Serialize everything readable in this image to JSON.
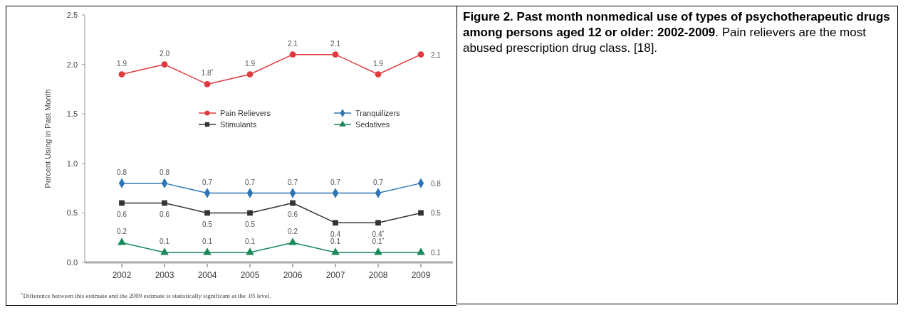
{
  "chart_data": {
    "type": "line",
    "title": "Figure 2. Past month nonmedical use of types of psychotherapeutic drugs among persons aged 12 or older: 2002-2009",
    "subtitle": ". Pain relievers are the most abused prescription drug class. [18].",
    "ylabel": "Percent Using in Past Month",
    "categories": [
      "2002",
      "2003",
      "2004",
      "2005",
      "2006",
      "2007",
      "2008",
      "2009"
    ],
    "ylim": [
      0,
      2.5
    ],
    "yticks": [
      {
        "value": 0,
        "label": "0.0"
      },
      {
        "value": 0.5,
        "label": "0.5"
      },
      {
        "value": 1,
        "label": "1.0"
      },
      {
        "value": 1.5,
        "label": "1.5"
      },
      {
        "value": 2,
        "label": "2.0"
      },
      {
        "value": 2.5,
        "label": "2.5"
      }
    ],
    "grid": false,
    "legend": "center",
    "line_style": "solid",
    "series": [
      {
        "name": "Pain Relievers",
        "color": "#e03a3e",
        "marker": "circle",
        "values": [
          1.9,
          2.0,
          1.8,
          1.9,
          2.1,
          2.1,
          1.9,
          2.1
        ],
        "value_labels": [
          "1.9",
          "2.0",
          "1.8$^{*}$",
          "1.9",
          "2.1",
          "2.1",
          "1.9",
          "2.1"
        ]
      },
      {
        "name": "Tranquilizers",
        "color": "#2e75b6",
        "marker": "diamond",
        "values": [
          0.8,
          0.8,
          0.7,
          0.7,
          0.7,
          0.7,
          0.7,
          0.8
        ],
        "value_labels": [
          "0.8",
          "0.8",
          "0.7",
          "0.7",
          "0.7",
          "0.7",
          "0.7",
          "0.8"
        ]
      },
      {
        "name": "Stimulants",
        "color": "#333333",
        "marker": "square",
        "values": [
          0.6,
          0.6,
          0.5,
          0.5,
          0.6,
          0.4,
          0.4,
          0.5
        ],
        "value_labels": [
          "0.6",
          "0.6",
          "0.5",
          "0.5",
          "0.6",
          "0.4",
          "0.4$^{*}$",
          "0.5"
        ]
      },
      {
        "name": "Sedatives",
        "color": "#1a8a5a",
        "marker": "triangle",
        "values": [
          0.2,
          0.1,
          0.1,
          0.1,
          0.2,
          0.1,
          0.1,
          0.1
        ],
        "value_labels": [
          "0.2",
          "0.1",
          "0.1",
          "0.1",
          "0.2",
          "0.1",
          "0.1$^{*}$",
          "0.1"
        ]
      }
    ],
    "annotations": [
      "$^{*}$Difference between this estimate and the 2009 estimate is statistically significant at the .05 level."
    ]
  }
}
